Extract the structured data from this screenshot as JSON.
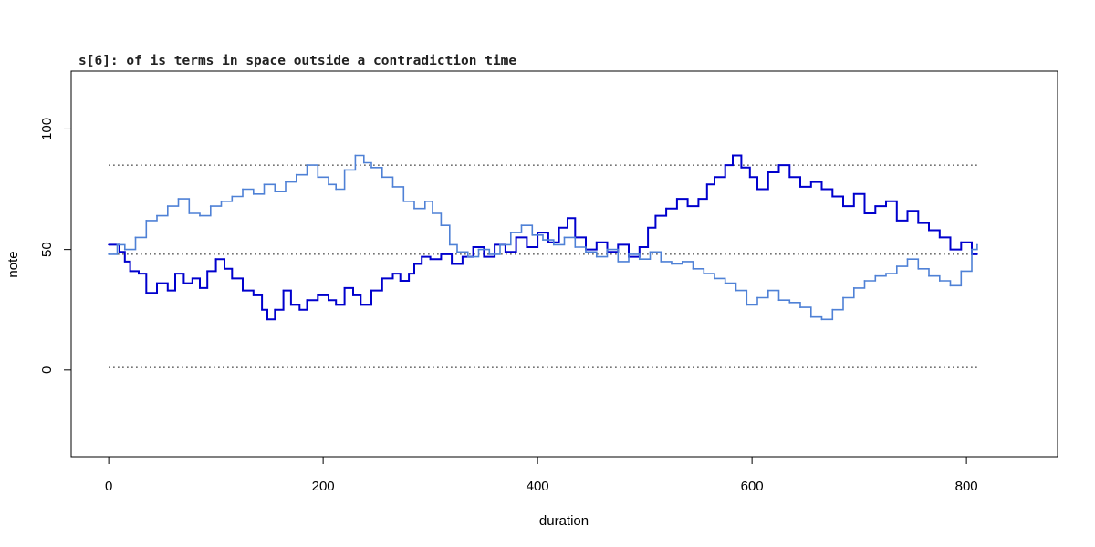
{
  "chart_data": {
    "type": "line",
    "step": true,
    "title": "s[6]: of is terms in space outside a contradiction time",
    "xlabel": "duration",
    "ylabel": "note",
    "xlim": [
      -35,
      885
    ],
    "ylim": [
      -36,
      124
    ],
    "x_ticks": [
      0,
      200,
      400,
      600,
      800
    ],
    "y_ticks": [
      0,
      50,
      100
    ],
    "reference_lines": [
      {
        "y": 1,
        "x_start": 0,
        "x_end": 810,
        "style": "dotted"
      },
      {
        "y": 48,
        "x_start": 0,
        "x_end": 810,
        "style": "dotted"
      },
      {
        "y": 85,
        "x_start": 0,
        "x_end": 810,
        "style": "dotted"
      }
    ],
    "series": [
      {
        "color": "#0000cd",
        "points": [
          [
            0,
            52
          ],
          [
            10,
            49
          ],
          [
            15,
            45
          ],
          [
            20,
            41
          ],
          [
            28,
            40
          ],
          [
            35,
            32
          ],
          [
            45,
            36
          ],
          [
            55,
            33
          ],
          [
            62,
            40
          ],
          [
            70,
            36
          ],
          [
            78,
            38
          ],
          [
            85,
            34
          ],
          [
            92,
            41
          ],
          [
            100,
            46
          ],
          [
            108,
            42
          ],
          [
            115,
            38
          ],
          [
            125,
            33
          ],
          [
            135,
            31
          ],
          [
            143,
            25
          ],
          [
            148,
            21
          ],
          [
            155,
            25
          ],
          [
            163,
            33
          ],
          [
            170,
            27
          ],
          [
            178,
            25
          ],
          [
            185,
            29
          ],
          [
            195,
            31
          ],
          [
            205,
            29
          ],
          [
            212,
            27
          ],
          [
            220,
            34
          ],
          [
            228,
            31
          ],
          [
            235,
            27
          ],
          [
            245,
            33
          ],
          [
            255,
            38
          ],
          [
            265,
            40
          ],
          [
            272,
            37
          ],
          [
            280,
            40
          ],
          [
            285,
            44
          ],
          [
            292,
            47
          ],
          [
            300,
            46
          ],
          [
            310,
            48
          ],
          [
            320,
            44
          ],
          [
            330,
            47
          ],
          [
            340,
            51
          ],
          [
            350,
            47
          ],
          [
            360,
            52
          ],
          [
            370,
            49
          ],
          [
            380,
            55
          ],
          [
            390,
            51
          ],
          [
            400,
            57
          ],
          [
            410,
            53
          ],
          [
            420,
            59
          ],
          [
            428,
            63
          ],
          [
            435,
            55
          ],
          [
            445,
            50
          ],
          [
            455,
            53
          ],
          [
            465,
            49
          ],
          [
            475,
            52
          ],
          [
            485,
            47
          ],
          [
            495,
            51
          ],
          [
            503,
            59
          ],
          [
            510,
            64
          ],
          [
            520,
            67
          ],
          [
            530,
            71
          ],
          [
            540,
            68
          ],
          [
            550,
            71
          ],
          [
            558,
            77
          ],
          [
            565,
            80
          ],
          [
            575,
            85
          ],
          [
            582,
            89
          ],
          [
            590,
            84
          ],
          [
            598,
            80
          ],
          [
            605,
            75
          ],
          [
            615,
            82
          ],
          [
            625,
            85
          ],
          [
            635,
            80
          ],
          [
            645,
            76
          ],
          [
            655,
            78
          ],
          [
            665,
            75
          ],
          [
            675,
            72
          ],
          [
            685,
            68
          ],
          [
            695,
            73
          ],
          [
            705,
            65
          ],
          [
            715,
            68
          ],
          [
            725,
            70
          ],
          [
            735,
            62
          ],
          [
            745,
            66
          ],
          [
            755,
            61
          ],
          [
            765,
            58
          ],
          [
            775,
            55
          ],
          [
            785,
            50
          ],
          [
            795,
            53
          ],
          [
            805,
            48
          ],
          [
            810,
            48
          ]
        ]
      },
      {
        "color": "#4f81d6",
        "points": [
          [
            0,
            48
          ],
          [
            8,
            52
          ],
          [
            15,
            50
          ],
          [
            25,
            55
          ],
          [
            35,
            62
          ],
          [
            45,
            64
          ],
          [
            55,
            68
          ],
          [
            65,
            71
          ],
          [
            75,
            65
          ],
          [
            85,
            64
          ],
          [
            95,
            68
          ],
          [
            105,
            70
          ],
          [
            115,
            72
          ],
          [
            125,
            75
          ],
          [
            135,
            73
          ],
          [
            145,
            77
          ],
          [
            155,
            74
          ],
          [
            165,
            78
          ],
          [
            175,
            81
          ],
          [
            185,
            85
          ],
          [
            195,
            80
          ],
          [
            205,
            77
          ],
          [
            212,
            75
          ],
          [
            220,
            83
          ],
          [
            230,
            89
          ],
          [
            238,
            86
          ],
          [
            245,
            84
          ],
          [
            255,
            80
          ],
          [
            265,
            76
          ],
          [
            275,
            70
          ],
          [
            285,
            67
          ],
          [
            295,
            70
          ],
          [
            302,
            65
          ],
          [
            310,
            60
          ],
          [
            318,
            52
          ],
          [
            325,
            49
          ],
          [
            335,
            47
          ],
          [
            345,
            50
          ],
          [
            355,
            48
          ],
          [
            365,
            52
          ],
          [
            375,
            57
          ],
          [
            385,
            60
          ],
          [
            395,
            56
          ],
          [
            405,
            54
          ],
          [
            415,
            52
          ],
          [
            425,
            55
          ],
          [
            435,
            51
          ],
          [
            445,
            49
          ],
          [
            455,
            47
          ],
          [
            465,
            50
          ],
          [
            475,
            45
          ],
          [
            485,
            48
          ],
          [
            495,
            46
          ],
          [
            505,
            49
          ],
          [
            515,
            45
          ],
          [
            525,
            44
          ],
          [
            535,
            45
          ],
          [
            545,
            42
          ],
          [
            555,
            40
          ],
          [
            565,
            38
          ],
          [
            575,
            36
          ],
          [
            585,
            33
          ],
          [
            595,
            27
          ],
          [
            605,
            30
          ],
          [
            615,
            33
          ],
          [
            625,
            29
          ],
          [
            635,
            28
          ],
          [
            645,
            26
          ],
          [
            655,
            22
          ],
          [
            665,
            21
          ],
          [
            675,
            25
          ],
          [
            685,
            30
          ],
          [
            695,
            34
          ],
          [
            705,
            37
          ],
          [
            715,
            39
          ],
          [
            725,
            40
          ],
          [
            735,
            43
          ],
          [
            745,
            46
          ],
          [
            755,
            42
          ],
          [
            765,
            39
          ],
          [
            775,
            37
          ],
          [
            785,
            35
          ],
          [
            795,
            41
          ],
          [
            805,
            50
          ],
          [
            810,
            52
          ]
        ]
      }
    ]
  }
}
